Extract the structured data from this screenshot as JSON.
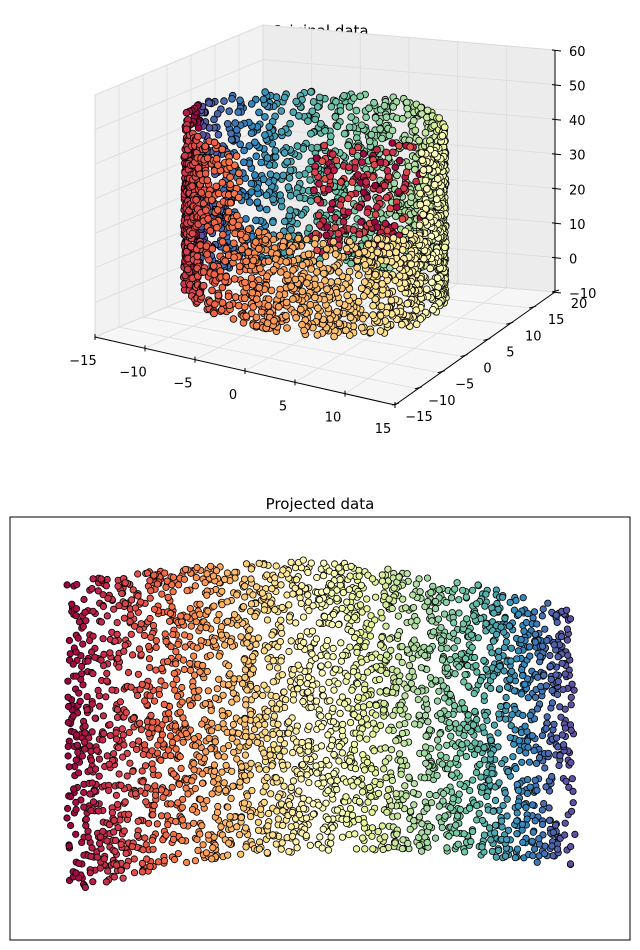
{
  "chart_data": [
    {
      "type": "scatter",
      "projection": "3d",
      "title": "Original data",
      "shape": "cylinder-shell",
      "xlim": [
        -15,
        15
      ],
      "ylim": [
        -15,
        20
      ],
      "zlim": [
        -10,
        60
      ],
      "x_ticks": [
        "−15",
        "−10",
        "−5",
        "0",
        "5",
        "10",
        "15"
      ],
      "y_ticks": [
        "−15",
        "−10",
        "−5",
        "0",
        "5",
        "10",
        "15",
        "20"
      ],
      "z_ticks": [
        "−10",
        "0",
        "10",
        "20",
        "30",
        "40",
        "50",
        "60"
      ],
      "grid": true,
      "colormap": "Spectral",
      "colored_by": "angle around the cylinder",
      "cylinder_radius": 12,
      "z_range": [
        0,
        50
      ],
      "front_cut_angle_range_deg": [
        -100,
        -10
      ],
      "sample_points": [
        {
          "x": 12.0,
          "y": 0.0,
          "z": 25,
          "t": 0.5
        },
        {
          "x": 0.0,
          "y": 12.0,
          "z": 40,
          "t": 0.75
        },
        {
          "x": -12.0,
          "y": 0.0,
          "z": 10,
          "t": 0.0
        },
        {
          "x": 8.5,
          "y": 8.5,
          "z": 45,
          "t": 0.62
        },
        {
          "x": -8.5,
          "y": -8.5,
          "z": 5,
          "t": 0.12
        }
      ],
      "colors": {
        "pane": "#f2f2f2",
        "grid": "#dcdcdc",
        "marker_edge": "#000000"
      }
    },
    {
      "type": "scatter",
      "title": "Projected data",
      "axes_ticks": false,
      "colormap": "Spectral",
      "colored_by": "horizontal position",
      "x_range": [
        -1,
        1
      ],
      "curvature": "band bows upward in the middle",
      "colors": {
        "left": "#d53e4f",
        "middle": "#ffffbf",
        "right": "#3288bd"
      }
    }
  ]
}
